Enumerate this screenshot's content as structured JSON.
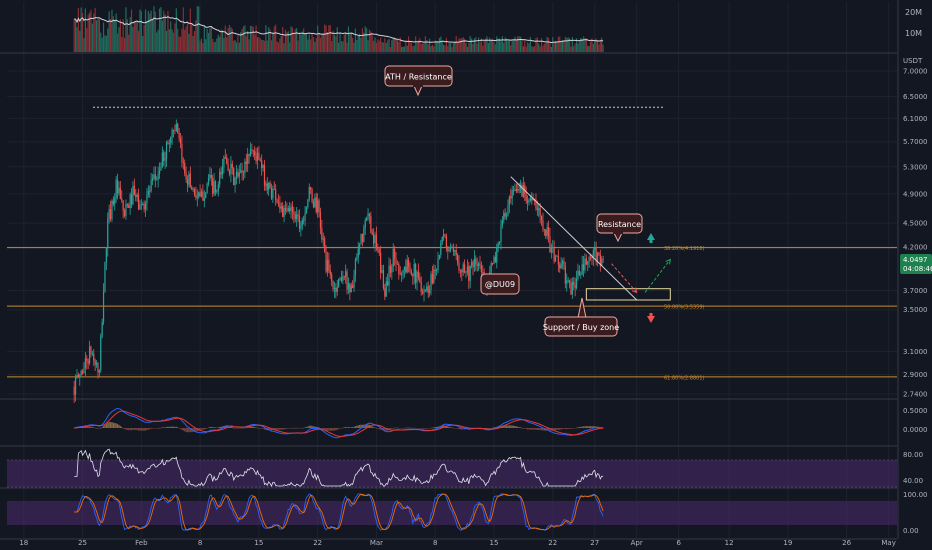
{
  "colors": {
    "background": "#131722",
    "up": "#26a69a",
    "down": "#ef5350",
    "grid": "#1e222d",
    "axis_text": "#b2b5be",
    "fib_line": "#c68a2e",
    "callout_bg": "#3a1c1f",
    "callout_border": "#f0a8a0",
    "price_badge": "#1e7f4f",
    "macd_line": "#2962ff",
    "signal_line": "#e53935",
    "rsi_band": "#4a2a6e",
    "rsi_line": "#e0e3eb",
    "stoch_k": "#2962ff",
    "stoch_d": "#ef6c00"
  },
  "volume_axis": [
    "20M",
    "10M"
  ],
  "price_axis": {
    "unit": "USDT",
    "ticks": [
      "7.0000",
      "6.5000",
      "6.1000",
      "5.7000",
      "5.3000",
      "4.9000",
      "4.5000",
      "4.2000",
      "3.7000",
      "3.5000",
      "3.1000",
      "2.9000",
      "2.7400"
    ],
    "current_price": "4.0497",
    "countdown": "04:08:46"
  },
  "macd_axis": [
    "0.5000",
    "0.0000"
  ],
  "rsi_axis": [
    "80.00",
    "40.00"
  ],
  "stoch_axis": [
    "100.00",
    "0.00"
  ],
  "time_axis": [
    "18",
    "25",
    "Feb",
    "8",
    "15",
    "22",
    "Mar",
    "8",
    "15",
    "22",
    "27",
    "Apr",
    "6",
    "12",
    "19",
    "26",
    "May"
  ],
  "fib_levels": [
    {
      "label": "38.20%(4.1918)",
      "price": 4.1918
    },
    {
      "label": "50.00%(3.5359)",
      "price": 3.5359
    },
    {
      "label": "61.80%(2.8801)",
      "price": 2.8801
    }
  ],
  "ath_level": 6.3,
  "annotations": {
    "ath": "ATH / Resistance",
    "resistance": "Resistance",
    "support": "Support / Buy zone",
    "watermark": "@DU09"
  },
  "chart_data": {
    "type": "candlestick",
    "x_range": [
      "Jan 16",
      "May 2"
    ],
    "y_range": [
      2.74,
      7.0
    ],
    "y_scale": "log",
    "path": [
      {
        "date": "Jan 24",
        "price": 2.8
      },
      {
        "date": "Jan 26",
        "price": 3.1
      },
      {
        "date": "Jan 27",
        "price": 2.9
      },
      {
        "date": "Jan 28",
        "price": 4.5
      },
      {
        "date": "Jan 29",
        "price": 5.0
      },
      {
        "date": "Jan 30",
        "price": 4.6
      },
      {
        "date": "Jan 31",
        "price": 4.9
      },
      {
        "date": "Feb 1",
        "price": 4.7
      },
      {
        "date": "Feb 3",
        "price": 5.2
      },
      {
        "date": "Feb 4",
        "price": 5.6
      },
      {
        "date": "Feb 5",
        "price": 6.0
      },
      {
        "date": "Feb 6",
        "price": 5.3
      },
      {
        "date": "Feb 7",
        "price": 5.0
      },
      {
        "date": "Feb 8",
        "price": 4.8
      },
      {
        "date": "Feb 9",
        "price": 5.1
      },
      {
        "date": "Feb 10",
        "price": 4.9
      },
      {
        "date": "Feb 11",
        "price": 5.5
      },
      {
        "date": "Feb 12",
        "price": 5.1
      },
      {
        "date": "Feb 13",
        "price": 5.2
      },
      {
        "date": "Feb 14",
        "price": 5.6
      },
      {
        "date": "Feb 15",
        "price": 5.4
      },
      {
        "date": "Feb 16",
        "price": 5.0
      },
      {
        "date": "Feb 17",
        "price": 4.9
      },
      {
        "date": "Feb 18",
        "price": 4.6
      },
      {
        "date": "Feb 19",
        "price": 4.7
      },
      {
        "date": "Feb 20",
        "price": 4.5
      },
      {
        "date": "Feb 21",
        "price": 4.9
      },
      {
        "date": "Feb 22",
        "price": 4.7
      },
      {
        "date": "Feb 23",
        "price": 4.0
      },
      {
        "date": "Feb 24",
        "price": 3.7
      },
      {
        "date": "Feb 25",
        "price": 3.9
      },
      {
        "date": "Feb 26",
        "price": 3.7
      },
      {
        "date": "Feb 27",
        "price": 4.2
      },
      {
        "date": "Feb 28",
        "price": 4.6
      },
      {
        "date": "Mar 1",
        "price": 4.2
      },
      {
        "date": "Mar 2",
        "price": 3.7
      },
      {
        "date": "Mar 3",
        "price": 4.1
      },
      {
        "date": "Mar 4",
        "price": 3.9
      },
      {
        "date": "Mar 5",
        "price": 4.0
      },
      {
        "date": "Mar 6",
        "price": 3.8
      },
      {
        "date": "Mar 7",
        "price": 3.7
      },
      {
        "date": "Mar 8",
        "price": 3.95
      },
      {
        "date": "Mar 9",
        "price": 4.3
      },
      {
        "date": "Mar 10",
        "price": 4.1
      },
      {
        "date": "Mar 11",
        "price": 4.0
      },
      {
        "date": "Mar 12",
        "price": 3.9
      },
      {
        "date": "Mar 13",
        "price": 4.0
      },
      {
        "date": "Mar 14",
        "price": 3.8
      },
      {
        "date": "Mar 15",
        "price": 4.0
      },
      {
        "date": "Mar 16",
        "price": 4.5
      },
      {
        "date": "Mar 17",
        "price": 4.8
      },
      {
        "date": "Mar 18",
        "price": 5.0
      },
      {
        "date": "Mar 19",
        "price": 4.9
      },
      {
        "date": "Mar 20",
        "price": 4.7
      },
      {
        "date": "Mar 21",
        "price": 4.5
      },
      {
        "date": "Mar 22",
        "price": 4.1
      },
      {
        "date": "Mar 23",
        "price": 4.0
      },
      {
        "date": "Mar 24",
        "price": 3.7
      },
      {
        "date": "Mar 25",
        "price": 3.85
      },
      {
        "date": "Mar 26",
        "price": 4.0
      },
      {
        "date": "Mar 27",
        "price": 4.1
      },
      {
        "date": "Mar 28",
        "price": 4.0497
      }
    ],
    "trendline": [
      {
        "date": "Mar 17",
        "price": 5.15
      },
      {
        "date": "Apr 1",
        "price": 3.6
      }
    ],
    "support_zone": {
      "from": "Mar 26",
      "to": "Apr 5",
      "low": 3.6,
      "high": 3.72
    },
    "projections": [
      {
        "direction": "down",
        "from": {
          "date": "Mar 29",
          "price": 4.0
        },
        "to": {
          "date": "Apr 1",
          "price": 3.68
        }
      },
      {
        "direction": "up",
        "from": {
          "date": "Apr 2",
          "price": 3.68
        },
        "to": {
          "date": "Apr 5",
          "price": 4.05
        }
      }
    ]
  }
}
